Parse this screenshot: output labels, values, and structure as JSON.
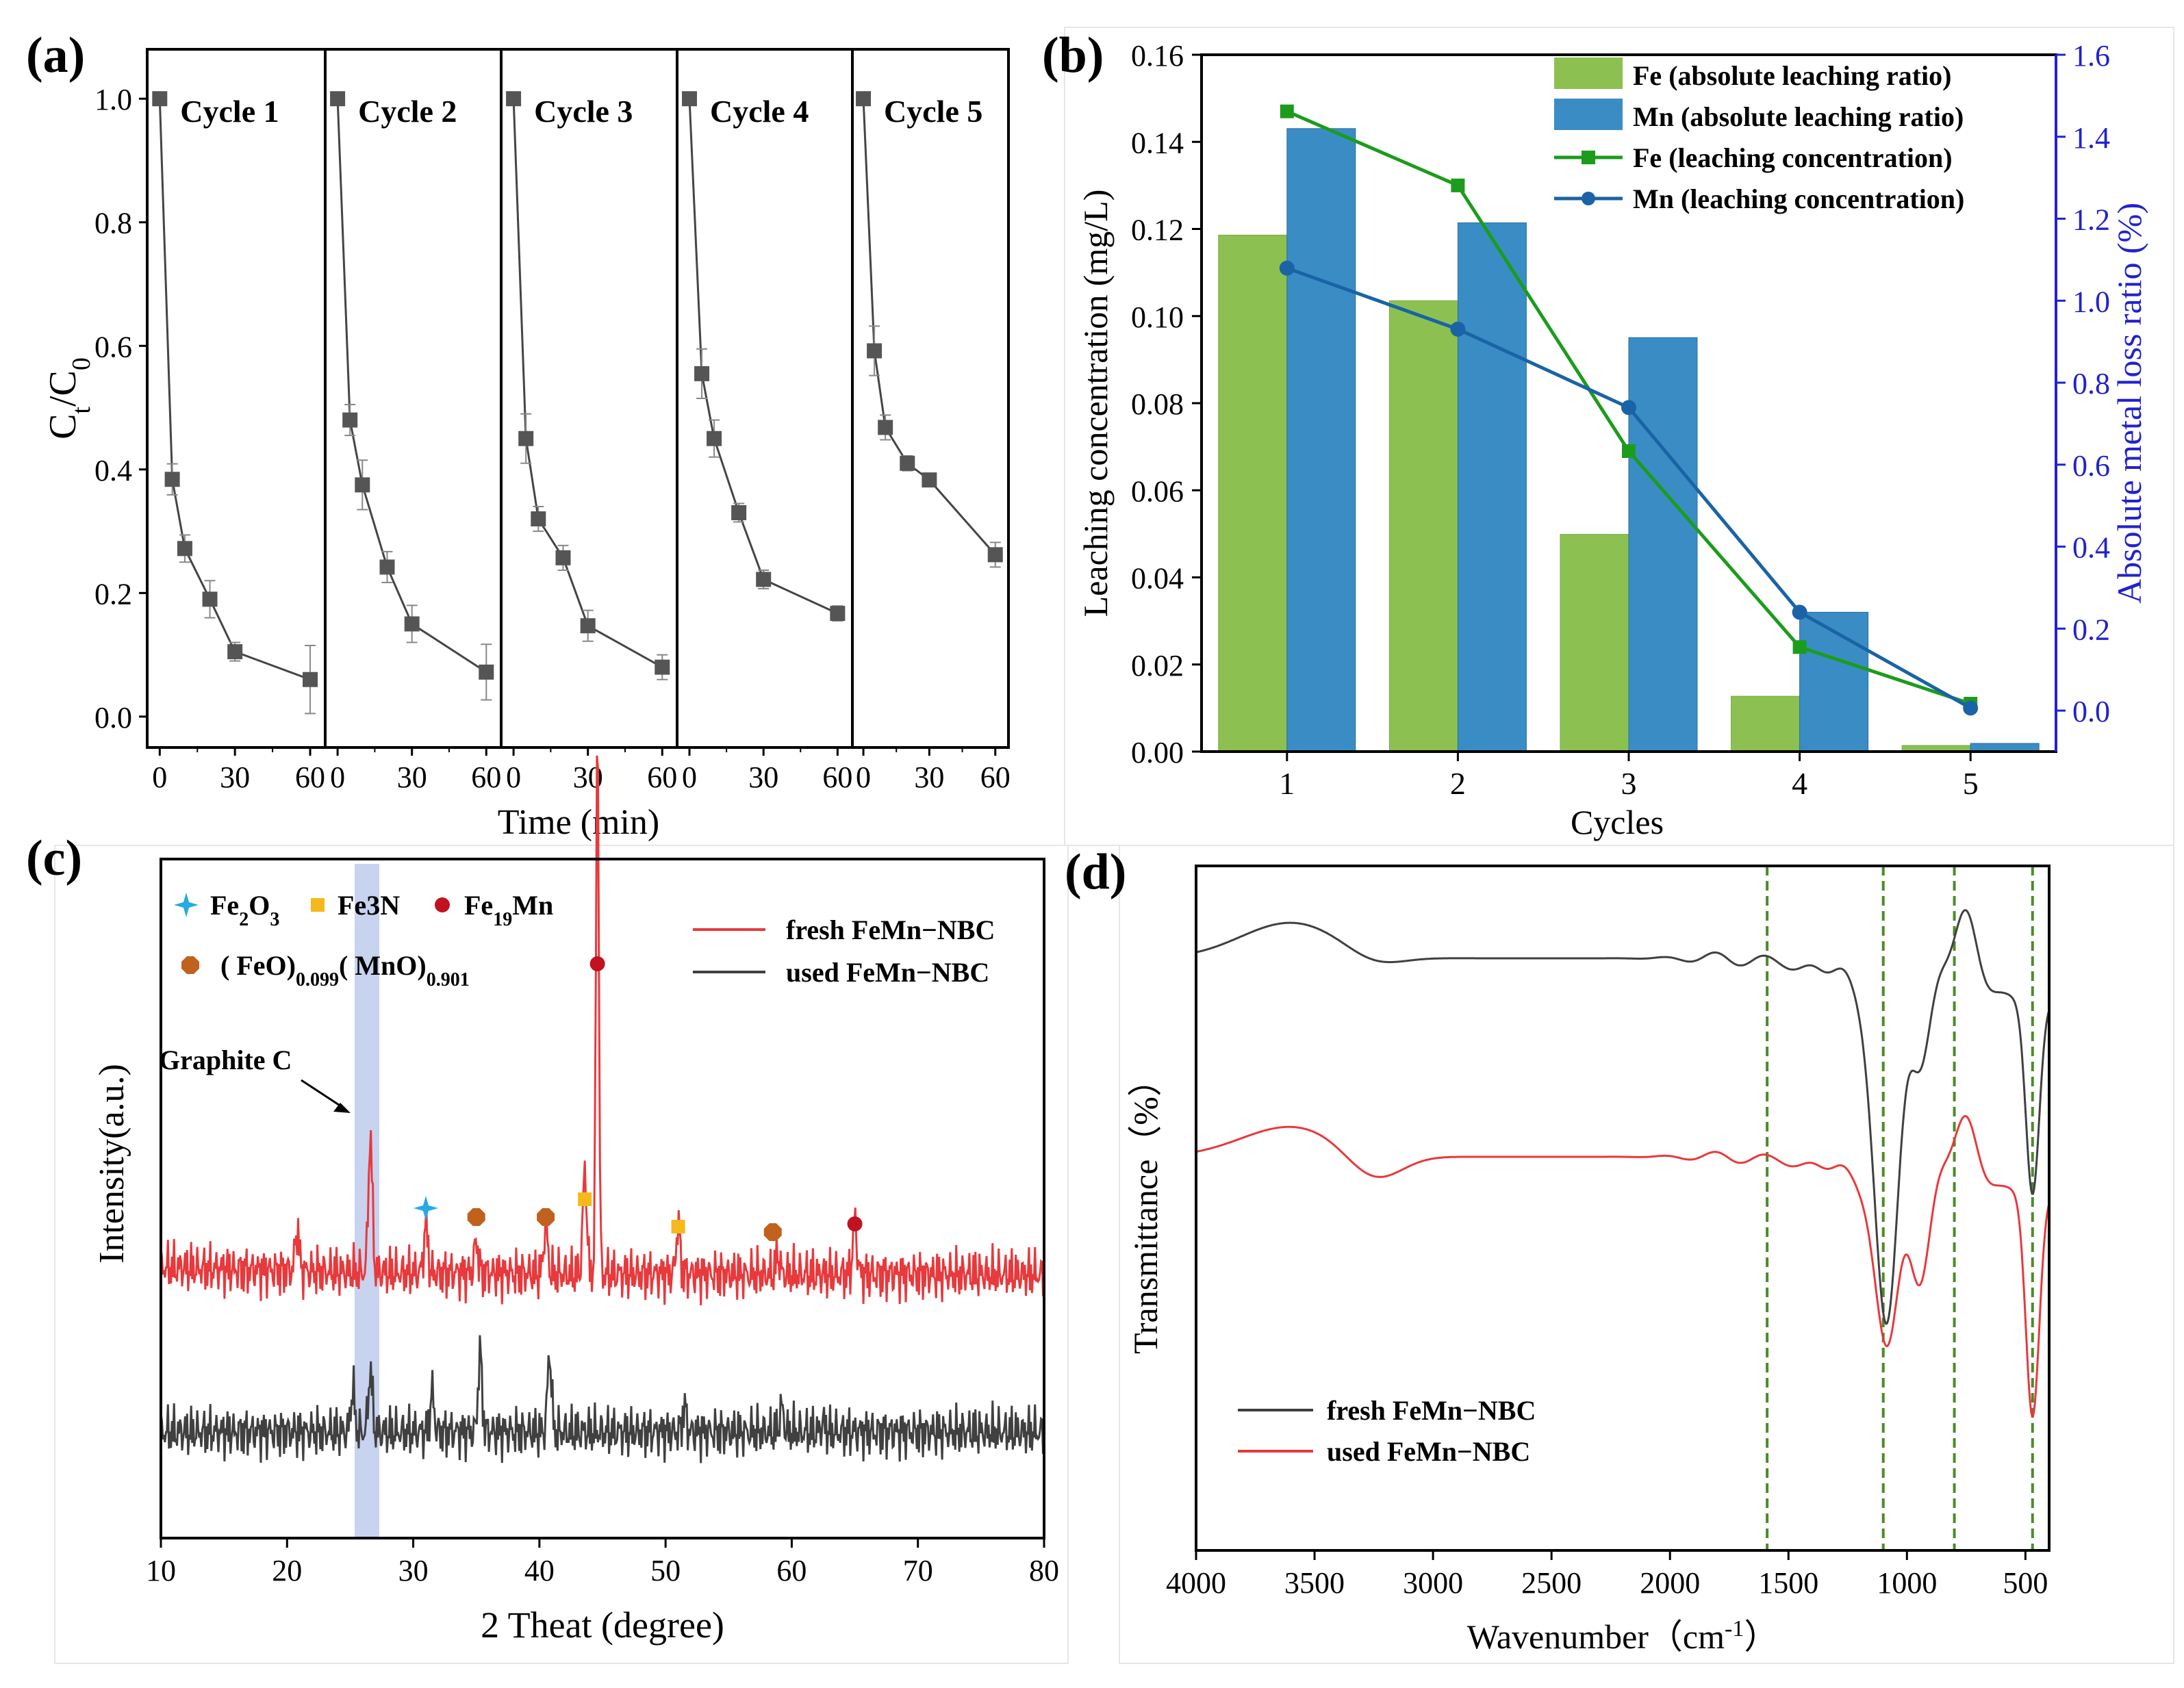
{
  "panels": {
    "a": {
      "label": "(a)"
    },
    "b": {
      "label": "(b)"
    },
    "c": {
      "label": "(c)"
    },
    "d": {
      "label": "(d)"
    }
  },
  "chart_data": [
    {
      "panel": "a",
      "type": "line",
      "xlabel": "Time (min)",
      "ylabel_main": "C",
      "ylabel_sub1": "t",
      "ylabel_slash": "/C",
      "ylabel_sub2": "0",
      "ylim": [
        -0.05,
        1.08
      ],
      "yticks": [
        0.0,
        0.2,
        0.4,
        0.6,
        0.8,
        1.0
      ],
      "ytick_labels": [
        "0.0",
        "0.2",
        "0.4",
        "0.6",
        "0.8",
        "1.0"
      ],
      "xlim": [
        -5,
        66
      ],
      "xticks": [
        0,
        30,
        60
      ],
      "xtick_labels": [
        "0",
        "30",
        "60"
      ],
      "color": "#454545",
      "series": [
        {
          "name": "Cycle 1",
          "x": [
            0,
            5,
            10,
            20,
            30,
            60
          ],
          "y": [
            1.0,
            0.384,
            0.272,
            0.19,
            0.105,
            0.06
          ],
          "err": [
            0.0,
            0.025,
            0.022,
            0.03,
            0.015,
            0.055
          ]
        },
        {
          "name": "Cycle 2",
          "x": [
            0,
            5,
            10,
            20,
            30,
            60
          ],
          "y": [
            1.0,
            0.48,
            0.375,
            0.242,
            0.15,
            0.072
          ],
          "err": [
            0.0,
            0.025,
            0.04,
            0.025,
            0.03,
            0.045
          ]
        },
        {
          "name": "Cycle 3",
          "x": [
            0,
            5,
            10,
            20,
            30,
            60
          ],
          "y": [
            1.0,
            0.45,
            0.32,
            0.257,
            0.147,
            0.08
          ],
          "err": [
            0.0,
            0.04,
            0.02,
            0.02,
            0.025,
            0.02
          ]
        },
        {
          "name": "Cycle 4",
          "x": [
            0,
            5,
            10,
            20,
            30,
            60
          ],
          "y": [
            1.0,
            0.555,
            0.45,
            0.33,
            0.222,
            0.167
          ],
          "err": [
            0.0,
            0.04,
            0.03,
            0.015,
            0.015,
            0.012
          ]
        },
        {
          "name": "Cycle 5",
          "x": [
            0,
            5,
            10,
            20,
            30,
            60
          ],
          "y": [
            1.0,
            0.592,
            0.468,
            0.41,
            0.383,
            0.262
          ],
          "err": [
            0.0,
            0.04,
            0.02,
            0.012,
            0.01,
            0.02
          ]
        }
      ]
    },
    {
      "panel": "b",
      "type": "bar",
      "xlabel": "Cycles",
      "ylabel_left": "Leaching concentration (mg/L)",
      "ylabel_right": "Absolute metal loss ratio (%)",
      "categories": [
        "1",
        "2",
        "3",
        "4",
        "5"
      ],
      "ylim_left": [
        0.0,
        0.16
      ],
      "yticks_left": [
        "0.00",
        "0.02",
        "0.04",
        "0.06",
        "0.08",
        "0.10",
        "0.12",
        "0.14",
        "0.16"
      ],
      "ylim_right": [
        -0.1,
        1.6
      ],
      "yticks_right": [
        "0.0",
        "0.2",
        "0.4",
        "0.6",
        "0.8",
        "1.0",
        "1.2",
        "1.4",
        "1.6"
      ],
      "right_axis_color": "#2222cc",
      "bar_series": [
        {
          "name": "Fe  (absolute leaching ratio)",
          "color": "#8cc152",
          "values": [
            1.16,
            1.0,
            0.43,
            0.035,
            -0.085
          ]
        },
        {
          "name": "Mn (absolute leaching ratio)",
          "color": "#3a8dc4",
          "values": [
            1.42,
            1.19,
            0.91,
            0.24,
            -0.08
          ]
        }
      ],
      "line_series": [
        {
          "name": "Fe  (leaching concentration)",
          "color": "#1c9c1c",
          "marker": "square",
          "values": [
            0.147,
            0.13,
            0.069,
            0.024,
            0.011
          ]
        },
        {
          "name": "Mn (leaching concentration)",
          "color": "#1a63a6",
          "marker": "circle",
          "values": [
            0.111,
            0.097,
            0.079,
            0.032,
            0.01
          ]
        }
      ],
      "legend_position": "top-right"
    },
    {
      "panel": "c",
      "type": "line",
      "xlabel": "2 Theat (degree)",
      "ylabel": "Intensity(a.u.)",
      "xlim": [
        10,
        80
      ],
      "xticks": [
        10,
        20,
        30,
        40,
        50,
        60,
        70,
        80
      ],
      "xtick_labels": [
        "10",
        "20",
        "30",
        "40",
        "50",
        "60",
        "70",
        "80"
      ],
      "series": [
        {
          "name": "fresh FeMn−NBC",
          "color": "#e8393c",
          "peaks": [
            [
              20.8,
              0.17
            ],
            [
              26.6,
              0.55
            ],
            [
              31.0,
              0.2
            ],
            [
              35.0,
              0.13
            ],
            [
              40.5,
              0.2
            ],
            [
              43.6,
              0.42
            ],
            [
              44.6,
              2.23
            ],
            [
              51.0,
              0.2
            ],
            [
              58.9,
              0.08
            ],
            [
              65.0,
              0.22
            ]
          ]
        },
        {
          "name": "used FeMn−NBC",
          "color": "#404040",
          "peaks": [
            [
              25.2,
              0.17
            ],
            [
              26.6,
              0.25
            ],
            [
              31.5,
              0.16
            ],
            [
              35.3,
              0.32
            ],
            [
              40.8,
              0.32
            ],
            [
              51.5,
              0.1
            ],
            [
              59.2,
              0.1
            ],
            [
              62.5,
              0.04
            ]
          ]
        }
      ],
      "phase_legend": [
        {
          "symbol": "star",
          "color": "#27a9e1",
          "main": "Fe",
          "sub1": "2",
          "mid": "O",
          "sub2": "3"
        },
        {
          "symbol": "square",
          "color": "#f6b91b",
          "main": "Fe3N"
        },
        {
          "symbol": "circle",
          "color": "#c1121f",
          "main": "Fe",
          "sub1": "19",
          "mid": "Mn"
        },
        {
          "symbol": "octagon",
          "color": "#c0621e",
          "main": "( FeO)",
          "sub1": "0.099",
          "mid": "( MnO)",
          "sub2": "0.901"
        }
      ],
      "peak_markers": [
        {
          "phase": "star",
          "x": 31.0
        },
        {
          "phase": "octagon",
          "x": 35.0
        },
        {
          "phase": "octagon",
          "x": 40.5
        },
        {
          "phase": "square",
          "x": 43.6
        },
        {
          "phase": "circle",
          "x": 44.6
        },
        {
          "phase": "square",
          "x": 51.0
        },
        {
          "phase": "octagon",
          "x": 58.5
        },
        {
          "phase": "circle",
          "x": 65.0
        }
      ],
      "annotation": "Graphite C",
      "shaded_band": [
        25.2,
        27.2
      ],
      "legend_position": "top-right"
    },
    {
      "panel": "d",
      "type": "line",
      "xlabel": "Wavenumber（cm",
      "xlabel_sup": "-1",
      "xlabel_end": "）",
      "ylabel": "Transmittance（%）",
      "xlim": [
        4000,
        400
      ],
      "xticks": [
        4000,
        3500,
        3000,
        2500,
        2000,
        1500,
        1000,
        500
      ],
      "xtick_labels": [
        "4000",
        "3500",
        "3000",
        "2500",
        "2000",
        "1500",
        "1000",
        "500"
      ],
      "reference_lines": [
        1590,
        1100,
        800,
        470
      ],
      "series": [
        {
          "name": "fresh FeMn−NBC",
          "color": "#404040"
        },
        {
          "name": "used FeMn−NBC",
          "color": "#e8393c"
        }
      ],
      "legend_position": "bottom-left"
    }
  ]
}
